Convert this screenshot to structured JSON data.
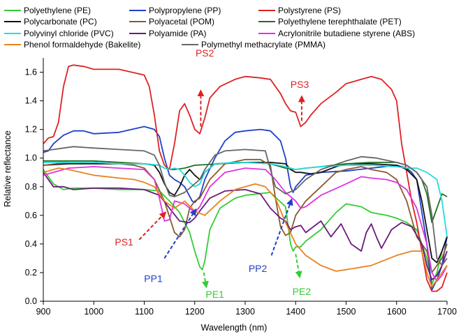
{
  "chart_data": {
    "type": "line",
    "title": "",
    "xlabel": "Wavelength (nm)",
    "ylabel": "Relative reflectance",
    "xlim": [
      900,
      1700
    ],
    "ylim": [
      0.0,
      1.7
    ],
    "xticks": [
      900,
      1000,
      1100,
      1200,
      1300,
      1400,
      1500,
      1600,
      1700
    ],
    "yticks": [
      0.0,
      0.2,
      0.4,
      0.6,
      0.8,
      1.0,
      1.2,
      1.4,
      1.6
    ],
    "xtick_labels": [
      "900",
      "1000",
      "1100",
      "1200",
      "1300",
      "1400",
      "1500",
      "1600",
      "1700"
    ],
    "ytick_labels": [
      "0.0",
      "0.2",
      "0.4",
      "0.6",
      "0.8",
      "1.0",
      "1.2",
      "1.4",
      "1.6"
    ],
    "grid": false,
    "legend": "top",
    "series": [
      {
        "key": "pe",
        "name": "Polyethylene (PE)",
        "color": "#33cc33",
        "x": [
          900,
          920,
          940,
          960,
          1000,
          1050,
          1100,
          1130,
          1150,
          1170,
          1190,
          1200,
          1210,
          1215,
          1220,
          1230,
          1250,
          1280,
          1300,
          1350,
          1380,
          1390,
          1395,
          1400,
          1410,
          1420,
          1450,
          1480,
          1500,
          1530,
          1550,
          1580,
          1600,
          1620,
          1640,
          1660,
          1670,
          1680,
          1690,
          1700
        ],
        "y": [
          0.92,
          0.82,
          0.78,
          0.79,
          0.79,
          0.78,
          0.78,
          0.77,
          0.7,
          0.62,
          0.48,
          0.35,
          0.24,
          0.22,
          0.28,
          0.5,
          0.65,
          0.72,
          0.74,
          0.76,
          0.66,
          0.4,
          0.35,
          0.38,
          0.38,
          0.42,
          0.5,
          0.62,
          0.68,
          0.66,
          0.62,
          0.6,
          0.58,
          0.55,
          0.5,
          0.3,
          0.12,
          0.2,
          0.35,
          0.45
        ]
      },
      {
        "key": "pp",
        "name": "Polypropylene (PP)",
        "color": "#1f3fcc",
        "x": [
          900,
          910,
          920,
          940,
          960,
          980,
          1000,
          1050,
          1100,
          1120,
          1130,
          1140,
          1150,
          1160,
          1170,
          1180,
          1195,
          1200,
          1210,
          1220,
          1240,
          1260,
          1280,
          1300,
          1330,
          1350,
          1370,
          1380,
          1390,
          1395,
          1400,
          1420,
          1450,
          1500,
          1550,
          1600,
          1620,
          1630,
          1640,
          1660,
          1670,
          1680,
          1690,
          1700
        ],
        "y": [
          1.04,
          1.05,
          1.1,
          1.16,
          1.19,
          1.19,
          1.17,
          1.18,
          1.22,
          1.2,
          1.15,
          1.0,
          0.88,
          0.85,
          0.83,
          0.8,
          0.7,
          0.69,
          0.73,
          0.85,
          1.0,
          1.12,
          1.18,
          1.19,
          1.2,
          1.19,
          1.12,
          1.0,
          0.8,
          0.76,
          0.8,
          0.88,
          0.9,
          0.91,
          0.93,
          0.95,
          0.93,
          0.9,
          0.85,
          0.4,
          0.08,
          0.15,
          0.25,
          0.45
        ]
      },
      {
        "key": "ps",
        "name": "Polystyrene (PS)",
        "color": "#dd2222",
        "x": [
          900,
          910,
          920,
          930,
          940,
          950,
          960,
          980,
          1000,
          1050,
          1100,
          1110,
          1120,
          1130,
          1140,
          1150,
          1160,
          1170,
          1180,
          1190,
          1200,
          1210,
          1220,
          1230,
          1250,
          1280,
          1300,
          1330,
          1350,
          1370,
          1380,
          1390,
          1400,
          1410,
          1420,
          1430,
          1450,
          1480,
          1500,
          1530,
          1550,
          1570,
          1590,
          1600,
          1610,
          1620,
          1630,
          1640,
          1650,
          1660,
          1670,
          1680,
          1690,
          1700
        ],
        "y": [
          1.1,
          1.14,
          1.15,
          1.25,
          1.5,
          1.64,
          1.65,
          1.64,
          1.62,
          1.62,
          1.58,
          1.5,
          1.3,
          1.05,
          0.95,
          0.92,
          1.1,
          1.33,
          1.38,
          1.3,
          1.2,
          1.17,
          1.28,
          1.42,
          1.5,
          1.55,
          1.57,
          1.56,
          1.55,
          1.45,
          1.38,
          1.33,
          1.32,
          1.22,
          1.25,
          1.3,
          1.38,
          1.46,
          1.52,
          1.55,
          1.57,
          1.55,
          1.48,
          1.4,
          1.1,
          0.9,
          0.7,
          0.55,
          0.35,
          0.15,
          0.07,
          0.07,
          0.1,
          0.2
        ]
      },
      {
        "key": "pc",
        "name": "Polycarbonate (PC)",
        "color": "#111111",
        "x": [
          900,
          950,
          1000,
          1050,
          1100,
          1120,
          1130,
          1140,
          1150,
          1160,
          1170,
          1180,
          1190,
          1200,
          1210,
          1220,
          1240,
          1300,
          1350,
          1380,
          1390,
          1400,
          1410,
          1430,
          1450,
          1480,
          1500,
          1550,
          1600,
          1620,
          1640,
          1650,
          1660,
          1670,
          1680,
          1690,
          1700
        ],
        "y": [
          0.95,
          0.96,
          0.96,
          0.96,
          0.96,
          0.95,
          0.9,
          0.82,
          0.76,
          0.74,
          0.8,
          0.88,
          0.92,
          0.88,
          0.85,
          0.9,
          0.96,
          0.97,
          0.97,
          0.96,
          0.92,
          0.9,
          0.9,
          0.89,
          0.9,
          0.94,
          0.96,
          0.96,
          0.95,
          0.92,
          0.85,
          0.7,
          0.5,
          0.3,
          0.27,
          0.35,
          0.45
        ]
      },
      {
        "key": "pom",
        "name": "Polyacetal (POM)",
        "color": "#8a5a2b",
        "x": [
          900,
          950,
          1000,
          1050,
          1080,
          1100,
          1120,
          1140,
          1160,
          1170,
          1180,
          1190,
          1200,
          1210,
          1230,
          1260,
          1300,
          1330,
          1350,
          1360,
          1370,
          1380,
          1390,
          1400,
          1420,
          1450,
          1480,
          1500,
          1530,
          1550,
          1580,
          1600,
          1620,
          1640,
          1660,
          1670,
          1680,
          1690,
          1700
        ],
        "y": [
          0.95,
          0.97,
          0.97,
          0.96,
          0.95,
          0.93,
          0.85,
          0.7,
          0.48,
          0.45,
          0.5,
          0.65,
          0.7,
          0.72,
          0.85,
          0.96,
          0.99,
          0.99,
          0.95,
          0.72,
          0.52,
          0.46,
          0.48,
          0.6,
          0.7,
          0.8,
          0.9,
          0.92,
          0.94,
          0.92,
          0.9,
          0.85,
          0.7,
          0.45,
          0.35,
          0.2,
          0.25,
          0.3,
          0.4
        ]
      },
      {
        "key": "pet",
        "name": "Polyethylene terephthalate (PET)",
        "color": "#1f6f1f",
        "x": [
          900,
          950,
          1000,
          1050,
          1100,
          1130,
          1140,
          1150,
          1160,
          1180,
          1200,
          1250,
          1300,
          1350,
          1380,
          1400,
          1420,
          1450,
          1500,
          1550,
          1600,
          1620,
          1640,
          1650,
          1660,
          1670,
          1680,
          1690,
          1700
        ],
        "y": [
          0.98,
          0.98,
          0.98,
          0.97,
          0.96,
          0.95,
          0.93,
          0.92,
          0.92,
          0.93,
          0.95,
          0.96,
          0.97,
          0.96,
          0.93,
          0.92,
          0.93,
          0.94,
          0.96,
          0.97,
          0.97,
          0.95,
          0.9,
          0.85,
          0.75,
          0.55,
          0.65,
          0.75,
          0.73
        ]
      },
      {
        "key": "pvc",
        "name": "Polyvinyl chloride (PVC)",
        "color": "#22dddd",
        "x": [
          900,
          950,
          1000,
          1050,
          1100,
          1130,
          1140,
          1150,
          1160,
          1170,
          1180,
          1190,
          1200,
          1210,
          1220,
          1240,
          1280,
          1300,
          1350,
          1380,
          1400,
          1420,
          1450,
          1500,
          1550,
          1600,
          1620,
          1640,
          1660,
          1680,
          1690,
          1700
        ],
        "y": [
          0.97,
          0.97,
          0.97,
          0.96,
          0.96,
          0.95,
          0.93,
          0.92,
          0.93,
          0.92,
          0.88,
          0.83,
          0.8,
          0.82,
          0.9,
          0.96,
          0.97,
          0.97,
          0.96,
          0.94,
          0.92,
          0.93,
          0.94,
          0.95,
          0.95,
          0.94,
          0.93,
          0.93,
          0.9,
          0.85,
          0.7,
          0.45
        ]
      },
      {
        "key": "pa",
        "name": "Polyamide (PA)",
        "color": "#6a1a7a",
        "x": [
          900,
          920,
          940,
          960,
          1000,
          1050,
          1100,
          1130,
          1150,
          1170,
          1190,
          1200,
          1210,
          1230,
          1260,
          1300,
          1330,
          1350,
          1370,
          1380,
          1390,
          1400,
          1410,
          1420,
          1450,
          1470,
          1490,
          1510,
          1530,
          1540,
          1550,
          1560,
          1570,
          1590,
          1610,
          1630,
          1650,
          1660,
          1670,
          1680,
          1690,
          1700
        ],
        "y": [
          0.9,
          0.8,
          0.8,
          0.78,
          0.79,
          0.79,
          0.78,
          0.74,
          0.65,
          0.56,
          0.55,
          0.58,
          0.63,
          0.72,
          0.77,
          0.78,
          0.75,
          0.65,
          0.58,
          0.56,
          0.5,
          0.52,
          0.53,
          0.48,
          0.56,
          0.45,
          0.54,
          0.4,
          0.35,
          0.48,
          0.54,
          0.45,
          0.37,
          0.5,
          0.55,
          0.52,
          0.4,
          0.25,
          0.15,
          0.18,
          0.25,
          0.35
        ]
      },
      {
        "key": "abs",
        "name": "Acrylonitrile  butadiene  styrene (ABS)",
        "color": "#e033e0",
        "x": [
          900,
          950,
          1000,
          1050,
          1100,
          1120,
          1130,
          1140,
          1150,
          1160,
          1180,
          1200,
          1210,
          1230,
          1260,
          1300,
          1340,
          1360,
          1380,
          1390,
          1400,
          1410,
          1420,
          1450,
          1500,
          1530,
          1550,
          1580,
          1600,
          1620,
          1640,
          1660,
          1670,
          1680,
          1690,
          1700
        ],
        "y": [
          0.88,
          0.93,
          0.94,
          0.93,
          0.92,
          0.85,
          0.72,
          0.56,
          0.57,
          0.7,
          0.68,
          0.62,
          0.66,
          0.8,
          0.9,
          0.93,
          0.92,
          0.85,
          0.76,
          0.73,
          0.7,
          0.65,
          0.66,
          0.74,
          0.82,
          0.87,
          0.86,
          0.85,
          0.83,
          0.78,
          0.65,
          0.4,
          0.2,
          0.14,
          0.18,
          0.25
        ]
      },
      {
        "key": "bakelite",
        "name": "Phenol formaldehyde (Bakelite)",
        "color": "#e8821e",
        "x": [
          900,
          930,
          950,
          1000,
          1050,
          1080,
          1100,
          1120,
          1140,
          1160,
          1180,
          1200,
          1220,
          1250,
          1280,
          1300,
          1320,
          1340,
          1360,
          1380,
          1400,
          1420,
          1450,
          1480,
          1500,
          1550,
          1600,
          1630,
          1650,
          1660,
          1670,
          1680,
          1690,
          1700
        ],
        "y": [
          0.9,
          0.93,
          0.92,
          0.88,
          0.86,
          0.85,
          0.83,
          0.8,
          0.7,
          0.65,
          0.7,
          0.63,
          0.6,
          0.7,
          0.78,
          0.8,
          0.82,
          0.8,
          0.72,
          0.55,
          0.4,
          0.32,
          0.25,
          0.21,
          0.22,
          0.25,
          0.32,
          0.35,
          0.35,
          0.2,
          0.1,
          0.15,
          0.2,
          0.25
        ]
      },
      {
        "key": "pmma",
        "name": "Polymethyl methacrylate (PMMA)",
        "color": "#666666",
        "x": [
          900,
          920,
          940,
          960,
          1000,
          1050,
          1100,
          1120,
          1130,
          1140,
          1150,
          1160,
          1180,
          1200,
          1210,
          1220,
          1240,
          1260,
          1300,
          1340,
          1350,
          1360,
          1380,
          1400,
          1420,
          1450,
          1500,
          1530,
          1560,
          1600,
          1620,
          1640,
          1660,
          1670,
          1680,
          1690,
          1700
        ],
        "y": [
          1.05,
          1.06,
          1.07,
          1.08,
          1.07,
          1.06,
          1.05,
          1.02,
          0.95,
          0.83,
          0.74,
          0.73,
          0.76,
          0.82,
          0.85,
          0.92,
          1.02,
          1.05,
          1.06,
          1.05,
          0.92,
          0.8,
          0.75,
          0.78,
          0.85,
          0.92,
          0.98,
          1.01,
          1.0,
          0.97,
          0.95,
          0.9,
          0.8,
          0.6,
          0.3,
          0.25,
          0.3
        ]
      }
    ],
    "annotations": [
      {
        "key": "ps1",
        "text": "PS1",
        "color": "#dd2222",
        "label_x": 1060,
        "label_y": 0.39,
        "arrow_from_x": 1090,
        "arrow_from_y": 0.43,
        "arrow_to_x": 1142,
        "arrow_to_y": 0.62
      },
      {
        "key": "ps2",
        "text": "PS2",
        "color": "#dd2222",
        "label_x": 1220,
        "label_y": 1.71,
        "arrow_from_x": 1212,
        "arrow_from_y": 1.22,
        "arrow_to_x": 1212,
        "arrow_to_y": 1.47
      },
      {
        "key": "ps3",
        "text": "PS3",
        "color": "#dd2222",
        "label_x": 1408,
        "label_y": 1.49,
        "arrow_from_x": 1412,
        "arrow_from_y": 1.26,
        "arrow_to_x": 1412,
        "arrow_to_y": 1.43
      },
      {
        "key": "pp1",
        "text": "PP1",
        "color": "#1f3fcc",
        "label_x": 1118,
        "label_y": 0.135,
        "arrow_from_x": 1140,
        "arrow_from_y": 0.3,
        "arrow_to_x": 1202,
        "arrow_to_y": 0.64
      },
      {
        "key": "pp2",
        "text": "PP2",
        "color": "#1f3fcc",
        "label_x": 1325,
        "label_y": 0.205,
        "arrow_from_x": 1352,
        "arrow_from_y": 0.32,
        "arrow_to_x": 1392,
        "arrow_to_y": 0.71
      },
      {
        "key": "pe1",
        "text": "PE1",
        "color": "#33cc33",
        "label_x": 1240,
        "label_y": 0.025,
        "arrow_from_x": 1218,
        "arrow_from_y": 0.2,
        "arrow_to_x": 1223,
        "arrow_to_y": 0.1
      },
      {
        "key": "pe2",
        "text": "PE2",
        "color": "#33cc33",
        "label_x": 1412,
        "label_y": 0.045,
        "arrow_from_x": 1400,
        "arrow_from_y": 0.33,
        "arrow_to_x": 1408,
        "arrow_to_y": 0.17
      }
    ]
  }
}
